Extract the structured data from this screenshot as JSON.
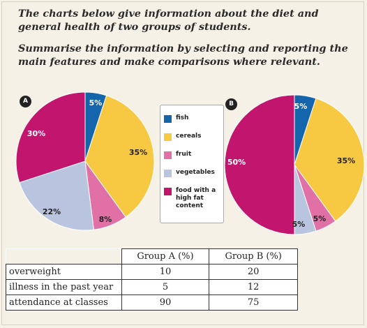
{
  "prompt": {
    "line1": "The charts below give information about the diet and general health of two groups of students.",
    "line2": "Summarise the information by selecting and reporting the main features and make comparisons where relevant."
  },
  "colors": {
    "fish": "#1565ad",
    "cereals": "#f7c943",
    "fruit": "#e070a6",
    "vegetables": "#b9c4de",
    "food with a high fat content": "#c2166e"
  },
  "legend": [
    "fish",
    "cereals",
    "fruit",
    "vegetables",
    "food with a high fat content"
  ],
  "chart_data": [
    {
      "type": "pie",
      "label": "A",
      "slices": [
        {
          "name": "fish",
          "value": 5,
          "label": "5%"
        },
        {
          "name": "cereals",
          "value": 35,
          "label": "35%"
        },
        {
          "name": "fruit",
          "value": 8,
          "label": "8%"
        },
        {
          "name": "vegetables",
          "value": 22,
          "label": "22%"
        },
        {
          "name": "food with a high fat content",
          "value": 30,
          "label": "30%"
        }
      ]
    },
    {
      "type": "pie",
      "label": "B",
      "slices": [
        {
          "name": "fish",
          "value": 5,
          "label": "5%"
        },
        {
          "name": "cereals",
          "value": 35,
          "label": "35%"
        },
        {
          "name": "fruit",
          "value": 5,
          "label": "5%"
        },
        {
          "name": "vegetables",
          "value": 5,
          "label": "5%"
        },
        {
          "name": "food with a high fat content",
          "value": 50,
          "label": "50%"
        }
      ]
    },
    {
      "type": "table",
      "columns": [
        "",
        "Group A (%)",
        "Group B (%)"
      ],
      "rows": [
        [
          "overweight",
          "10",
          "20"
        ],
        [
          "illness in the past year",
          "5",
          "12"
        ],
        [
          "attendance at classes",
          "90",
          "75"
        ]
      ]
    }
  ]
}
